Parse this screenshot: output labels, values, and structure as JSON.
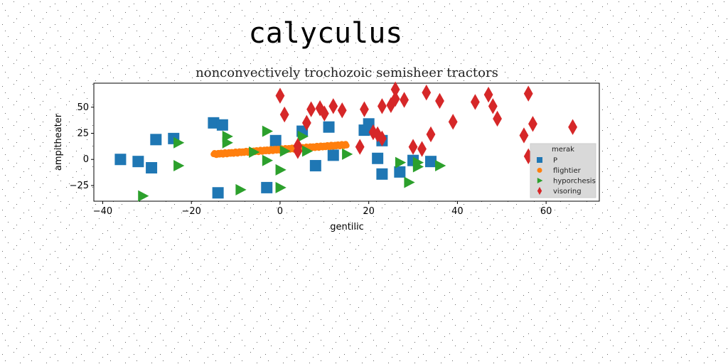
{
  "chart_data": {
    "type": "scatter",
    "suptitle": "calyculus",
    "title": "nonconvectively trochozoic semisheer tractors",
    "xlabel": "gentilic",
    "ylabel": "ampitheater",
    "xlim": [
      -42,
      72
    ],
    "ylim": [
      -40,
      73
    ],
    "xticks": [
      "−40",
      "−20",
      "0",
      "20",
      "40",
      "60"
    ],
    "xtick_values": [
      -40,
      -20,
      0,
      20,
      40,
      60
    ],
    "yticks": [
      "−25",
      "0",
      "25",
      "50"
    ],
    "ytick_values": [
      -25,
      0,
      25,
      50
    ],
    "grid": false,
    "legend": {
      "title": "merak",
      "placement": "lower-right"
    },
    "series": [
      {
        "name": "P",
        "marker": "square",
        "color": "#1f77b4",
        "points": [
          [
            -36,
            0
          ],
          [
            -32,
            -2
          ],
          [
            -29,
            -8
          ],
          [
            -28,
            19
          ],
          [
            -24,
            20
          ],
          [
            -15,
            35
          ],
          [
            -13,
            33
          ],
          [
            -14,
            -32
          ],
          [
            -3,
            -27
          ],
          [
            -1,
            18
          ],
          [
            5,
            27
          ],
          [
            8,
            -6
          ],
          [
            11,
            31
          ],
          [
            12,
            4
          ],
          [
            19,
            28
          ],
          [
            20,
            34
          ],
          [
            22,
            1
          ],
          [
            23,
            -14
          ],
          [
            23,
            18
          ],
          [
            27,
            -12
          ],
          [
            30,
            -1
          ],
          [
            34,
            -2
          ]
        ]
      },
      {
        "name": "flightier",
        "marker": "dot",
        "color": "#ff7f0e",
        "line": {
          "x0": -15,
          "x1": 15,
          "y0": 5,
          "y1": 14
        }
      },
      {
        "name": "hyporchesis",
        "marker": "triangle-right",
        "color": "#2ca02c",
        "points": [
          [
            -31,
            -35
          ],
          [
            -23,
            16
          ],
          [
            -23,
            -6
          ],
          [
            -12,
            22
          ],
          [
            -12,
            16
          ],
          [
            -9,
            -29
          ],
          [
            -6,
            7
          ],
          [
            -3,
            27
          ],
          [
            -3,
            -1
          ],
          [
            0,
            -10
          ],
          [
            0,
            -27
          ],
          [
            1,
            8
          ],
          [
            5,
            22
          ],
          [
            6,
            8
          ],
          [
            15,
            5
          ],
          [
            27,
            -3
          ],
          [
            29,
            -22
          ],
          [
            31,
            -7
          ],
          [
            31,
            -3
          ],
          [
            36,
            -6
          ]
        ]
      },
      {
        "name": "visoring",
        "marker": "diamond",
        "color": "#d62728",
        "points": [
          [
            0,
            61
          ],
          [
            1,
            43
          ],
          [
            4,
            8
          ],
          [
            4,
            13
          ],
          [
            6,
            35
          ],
          [
            7,
            48
          ],
          [
            9,
            49
          ],
          [
            10,
            44
          ],
          [
            12,
            51
          ],
          [
            14,
            47
          ],
          [
            18,
            12
          ],
          [
            19,
            48
          ],
          [
            21,
            26
          ],
          [
            22,
            24
          ],
          [
            23,
            20
          ],
          [
            23,
            51
          ],
          [
            25,
            52
          ],
          [
            26,
            58
          ],
          [
            26,
            67
          ],
          [
            28,
            57
          ],
          [
            30,
            12
          ],
          [
            32,
            10
          ],
          [
            33,
            64
          ],
          [
            34,
            24
          ],
          [
            36,
            56
          ],
          [
            39,
            36
          ],
          [
            44,
            55
          ],
          [
            47,
            62
          ],
          [
            48,
            51
          ],
          [
            49,
            39
          ],
          [
            55,
            23
          ],
          [
            56,
            3
          ],
          [
            56,
            63
          ],
          [
            57,
            34
          ],
          [
            66,
            31
          ]
        ]
      }
    ]
  }
}
